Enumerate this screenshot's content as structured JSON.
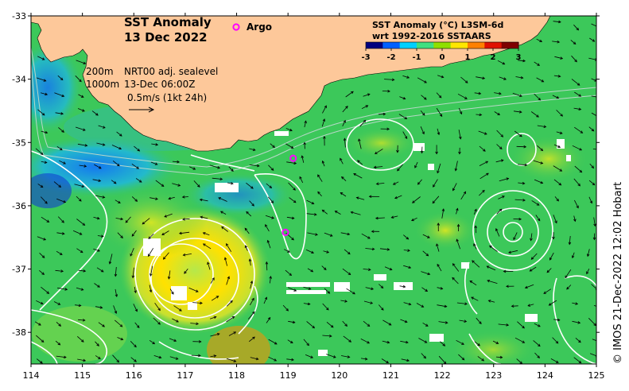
{
  "title": {
    "line1": "SST Anomaly",
    "line2": "13 Dec 2022"
  },
  "legend": {
    "argo_label": "Argo",
    "argo_color": "#ff00ff"
  },
  "colorbar": {
    "title_line1": "SST Anomaly (°C) L3SM-6d",
    "title_line2": "wrt 1992-2016 SSTAARS",
    "ticks": [
      "-3",
      "-2",
      "-1",
      "0",
      "1",
      "2",
      "3"
    ],
    "range": [
      -3,
      3
    ],
    "colors": [
      "#00007f",
      "#0060ff",
      "#00d0ff",
      "#40e080",
      "#8fe000",
      "#ffe600",
      "#ff8000",
      "#e01000",
      "#7f0000"
    ]
  },
  "notes": {
    "depth_200": "200m",
    "depth_1000": "1000m",
    "product": "NRT00 adj. sealevel",
    "time": "13-Dec 06:00Z",
    "scale": "0.5m/s (1kt 24h)"
  },
  "credit": "© IMOS 21-Dec-2022 12:02 Hobart",
  "axes": {
    "x_ticks": [
      "114",
      "115",
      "116",
      "117",
      "118",
      "119",
      "120",
      "121",
      "122",
      "123",
      "124",
      "125"
    ],
    "y_ticks": [
      "-33",
      "-34",
      "-35",
      "-36",
      "-37",
      "-38"
    ],
    "lon_range": [
      114,
      125
    ],
    "lat_range": [
      -33,
      -38.5
    ]
  },
  "argo_floats": [
    {
      "lon": 119.1,
      "lat": -35.25
    },
    {
      "lon": 118.95,
      "lat": -36.42
    }
  ],
  "colors": {
    "land": "#fdc89a",
    "ocean_base": "#3cc85a",
    "contour": "#ffffff"
  }
}
